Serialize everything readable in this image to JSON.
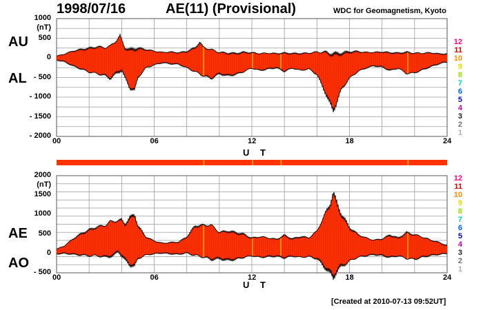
{
  "header": {
    "date": "1998/07/16",
    "title": "AE(11) (Provisional)",
    "source": "WDC for Geomagnetism, Kyoto",
    "created": "[Created at 2010-07-13 09:52UT]"
  },
  "colors": {
    "fill": "#ff3300",
    "outline": "#000000",
    "grid": "#9a9a9a",
    "highlight": "#ffb000"
  },
  "legend": {
    "numbers": [
      "12",
      "11",
      "10",
      "9",
      "8",
      "7",
      "6",
      "5",
      "4",
      "3",
      "2",
      "1"
    ],
    "colors": [
      "#ff0080",
      "#e00000",
      "#ff8c00",
      "#f0d800",
      "#90e000",
      "#00d0c0",
      "#0060ff",
      "#0000c0",
      "#c000c0",
      "#202020",
      "#707070",
      "#b0b0b0"
    ]
  },
  "chart_data": [
    {
      "type": "area",
      "series_labels": [
        "AU",
        "AL"
      ],
      "xlabel": "U T",
      "ylabel_unit": "(nT)",
      "xlim": [
        0,
        24
      ],
      "ylim": [
        -2000,
        1000
      ],
      "xticks": [
        "00",
        "06",
        "12",
        "18",
        "24"
      ],
      "yticks": [
        {
          "v": 1000,
          "t": "1000"
        },
        {
          "v": 500,
          "t": "500"
        },
        {
          "v": 0,
          "t": "0"
        },
        {
          "v": -500,
          "t": "- 500"
        },
        {
          "v": -1000,
          "t": "- 1000"
        },
        {
          "v": -1500,
          "t": "- 1500"
        },
        {
          "v": -2000,
          "t": "- 2000"
        }
      ],
      "series": [
        {
          "name": "AU",
          "x": [
            0,
            0.5,
            1,
            1.5,
            2,
            2.5,
            3,
            3.3,
            3.7,
            3.9,
            4.2,
            4.5,
            5,
            5.5,
            6,
            6.5,
            7,
            7.5,
            8,
            8.5,
            8.8,
            9,
            9.5,
            10,
            10.5,
            11,
            11.5,
            12,
            12.5,
            13,
            13.5,
            14,
            14.5,
            15,
            15.5,
            16,
            16.5,
            17,
            17.5,
            18,
            18.5,
            19,
            19.5,
            20,
            20.5,
            21,
            21.5,
            22,
            22.5,
            23,
            23.5,
            24
          ],
          "y": [
            40,
            100,
            170,
            210,
            240,
            280,
            260,
            300,
            450,
            560,
            250,
            200,
            240,
            210,
            170,
            140,
            150,
            130,
            160,
            250,
            400,
            270,
            210,
            140,
            120,
            110,
            140,
            130,
            110,
            120,
            110,
            120,
            110,
            110,
            120,
            150,
            140,
            90,
            110,
            150,
            160,
            140,
            140,
            150,
            130,
            120,
            140,
            120,
            120,
            130,
            100,
            100
          ]
        },
        {
          "name": "AL",
          "x": [
            0,
            0.5,
            1,
            1.5,
            2,
            2.5,
            3,
            3.3,
            3.7,
            4,
            4.2,
            4.5,
            4.8,
            5,
            5.5,
            6,
            6.5,
            7,
            7.5,
            8,
            8.5,
            9,
            9.5,
            10,
            10.5,
            11,
            11.5,
            12,
            12.5,
            13,
            13.5,
            14,
            14.5,
            15,
            15.5,
            16,
            16.2,
            16.5,
            16.8,
            17,
            17.2,
            17.5,
            18,
            18.5,
            19,
            19.5,
            20,
            20.5,
            21,
            21.5,
            22,
            22.5,
            23,
            23.5,
            24
          ],
          "y": [
            -50,
            -100,
            -200,
            -280,
            -360,
            -400,
            -450,
            -520,
            -380,
            -300,
            -500,
            -760,
            -820,
            -500,
            -250,
            -180,
            -120,
            -150,
            -160,
            -250,
            -350,
            -450,
            -520,
            -400,
            -450,
            -420,
            -350,
            -260,
            -320,
            -280,
            -250,
            -340,
            -260,
            -320,
            -280,
            -420,
            -600,
            -860,
            -1150,
            -1330,
            -1150,
            -800,
            -520,
            -350,
            -260,
            -200,
            -230,
            -320,
            -260,
            -400,
            -380,
            -300,
            -220,
            -150,
            -100
          ]
        }
      ]
    },
    {
      "type": "area",
      "series_labels": [
        "AE",
        "AO"
      ],
      "xlabel": "U T",
      "ylabel_unit": "(nT)",
      "xlim": [
        0,
        24
      ],
      "ylim": [
        -500,
        2000
      ],
      "xticks": [
        "00",
        "06",
        "12",
        "18",
        "24"
      ],
      "yticks": [
        {
          "v": 2000,
          "t": "2000"
        },
        {
          "v": 1500,
          "t": "1500"
        },
        {
          "v": 1000,
          "t": "1000"
        },
        {
          "v": 500,
          "t": "500"
        },
        {
          "v": 0,
          "t": "0"
        },
        {
          "v": -500,
          "t": "- 500"
        }
      ],
      "series": [
        {
          "name": "AE",
          "x": [
            0,
            0.5,
            1,
            1.5,
            2,
            2.5,
            3,
            3.3,
            3.7,
            4,
            4.2,
            4.5,
            4.8,
            5,
            5.5,
            6,
            6.5,
            7,
            7.5,
            8,
            8.5,
            9,
            9.5,
            10,
            10.5,
            11,
            11.5,
            12,
            12.5,
            13,
            13.5,
            14,
            14.5,
            15,
            15.5,
            16,
            16.2,
            16.5,
            16.8,
            17,
            17.2,
            17.5,
            18,
            18.5,
            19,
            19.5,
            20,
            20.5,
            21,
            21.5,
            22,
            22.5,
            23,
            23.5,
            24
          ],
          "y": [
            100,
            200,
            370,
            500,
            600,
            680,
            720,
            820,
            830,
            860,
            750,
            900,
            1000,
            700,
            420,
            320,
            260,
            280,
            290,
            420,
            700,
            720,
            730,
            540,
            570,
            530,
            490,
            390,
            430,
            400,
            360,
            460,
            370,
            430,
            400,
            570,
            750,
            1000,
            1260,
            1550,
            1300,
            1000,
            660,
            490,
            400,
            340,
            370,
            470,
            390,
            530,
            480,
            420,
            340,
            280,
            200
          ]
        },
        {
          "name": "AO",
          "x": [
            0,
            0.5,
            1,
            1.5,
            2,
            2.5,
            3,
            3.5,
            3.8,
            4.2,
            4.5,
            4.8,
            5,
            5.5,
            6,
            6.5,
            7,
            7.5,
            8,
            8.5,
            9,
            9.5,
            10,
            10.5,
            11,
            11.5,
            12,
            12.5,
            13,
            13.5,
            14,
            14.5,
            15,
            15.5,
            16,
            16.5,
            17,
            17.2,
            17.5,
            18,
            18.5,
            19,
            19.5,
            20,
            20.5,
            21,
            21.5,
            22,
            22.5,
            23,
            23.5,
            24
          ],
          "y": [
            -10,
            0,
            -20,
            -40,
            -60,
            -60,
            -90,
            -50,
            60,
            -160,
            -280,
            -330,
            -130,
            -40,
            -10,
            10,
            -10,
            -20,
            10,
            -50,
            -90,
            -150,
            -130,
            -170,
            -150,
            -100,
            -60,
            -100,
            -80,
            -70,
            -110,
            -70,
            -100,
            -80,
            -130,
            -350,
            -600,
            -450,
            -330,
            -200,
            -100,
            -60,
            -30,
            -50,
            -100,
            -60,
            -130,
            -150,
            -90,
            -50,
            -25,
            0
          ]
        }
      ]
    }
  ]
}
